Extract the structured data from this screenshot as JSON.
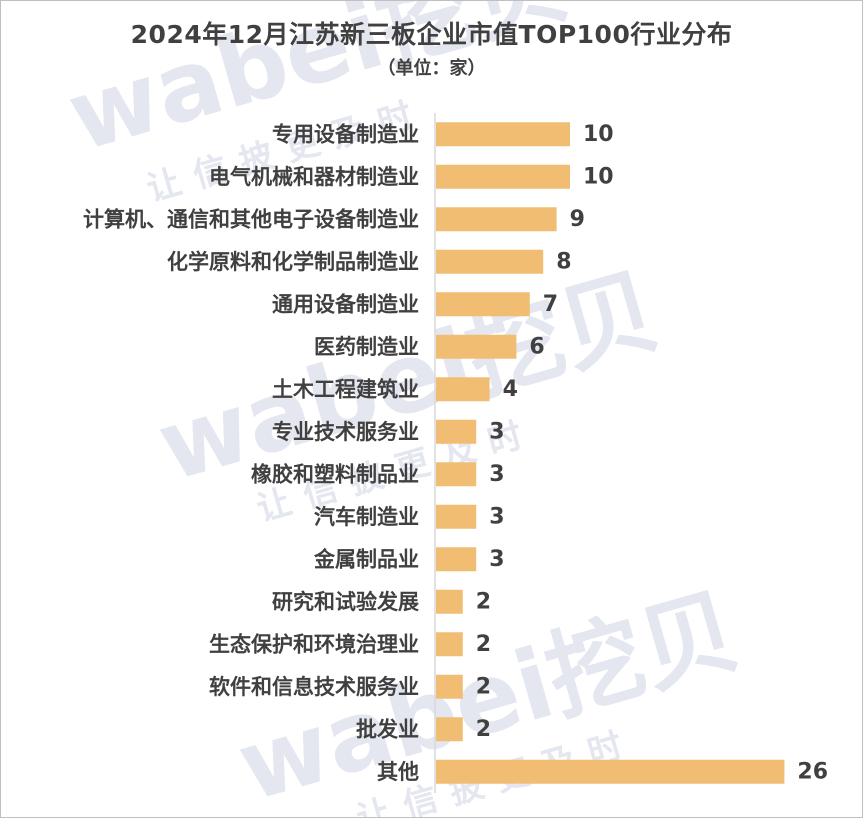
{
  "chart_data": {
    "type": "bar",
    "orientation": "horizontal",
    "title": "2024年12月江苏新三板企业市值TOP100行业分布",
    "subtitle": "（单位：家）",
    "categories": [
      "专用设备制造业",
      "电气机械和器材制造业",
      "计算机、通信和其他电子设备制造业",
      "化学原料和化学制品制造业",
      "通用设备制造业",
      "医药制造业",
      "土木工程建筑业",
      "专业技术服务业",
      "橡胶和塑料制品业",
      "汽车制造业",
      "金属制品业",
      "研究和试验发展",
      "生态保护和环境治理业",
      "软件和信息技术服务业",
      "批发业",
      "其他"
    ],
    "values": [
      10,
      10,
      9,
      8,
      7,
      6,
      4,
      3,
      3,
      3,
      3,
      2,
      2,
      2,
      2,
      26
    ],
    "data_labels": true,
    "grid": false,
    "legend": "none",
    "bar_color": "#F1BD72",
    "axis_color": "#d9d9d9"
  },
  "watermark": {
    "brand": "wabei挖贝",
    "slogan": "让信披更及时"
  }
}
